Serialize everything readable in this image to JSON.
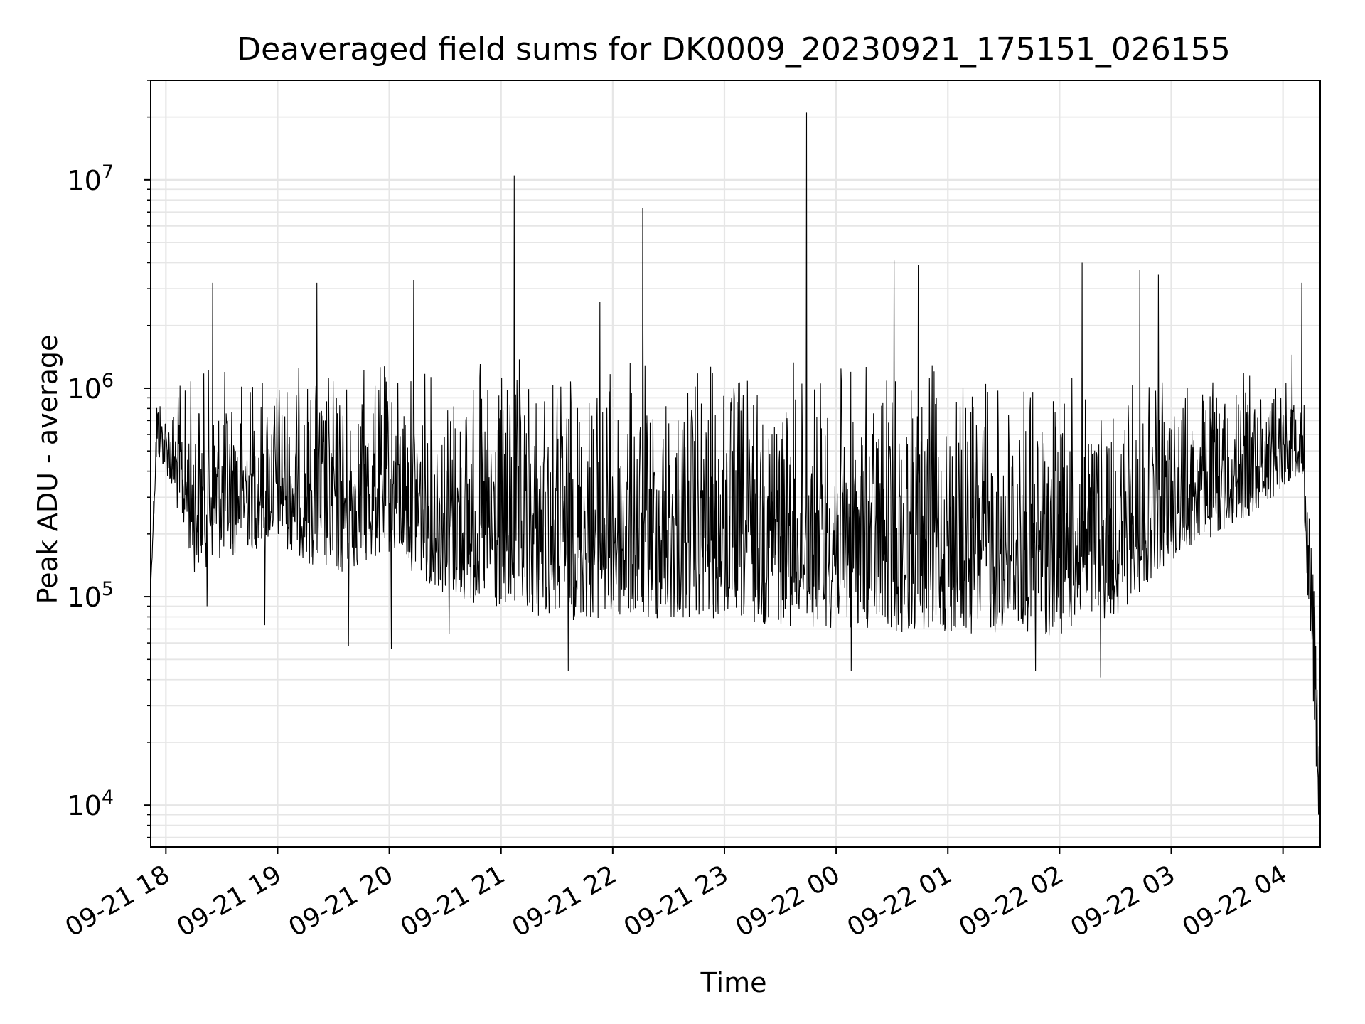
{
  "chart_data": {
    "type": "line",
    "title": "Deaveraged field sums for DK0009_20230921_175151_026155",
    "xlabel": "Time",
    "ylabel": "Peak ADU - average",
    "yscale": "log",
    "ylim": [
      6300,
      30000000
    ],
    "xlim": [
      "2023-09-21 17:51:51",
      "2023-09-22 04:20:00"
    ],
    "grid": true,
    "line_color": "#000000",
    "grid_color": "#e6e6e6",
    "x_ticks": [
      {
        "t": "2023-09-21 18:00",
        "label": "09-21 18"
      },
      {
        "t": "2023-09-21 19:00",
        "label": "09-21 19"
      },
      {
        "t": "2023-09-21 20:00",
        "label": "09-21 20"
      },
      {
        "t": "2023-09-21 21:00",
        "label": "09-21 21"
      },
      {
        "t": "2023-09-21 22:00",
        "label": "09-21 22"
      },
      {
        "t": "2023-09-21 23:00",
        "label": "09-21 23"
      },
      {
        "t": "2023-09-22 00:00",
        "label": "09-22 00"
      },
      {
        "t": "2023-09-22 01:00",
        "label": "09-22 01"
      },
      {
        "t": "2023-09-22 02:00",
        "label": "09-22 02"
      },
      {
        "t": "2023-09-22 03:00",
        "label": "09-22 03"
      },
      {
        "t": "2023-09-22 04:00",
        "label": "09-22 04"
      }
    ],
    "y_ticks": [
      {
        "value": 10000,
        "base": "10",
        "exp": "4"
      },
      {
        "value": 100000,
        "base": "10",
        "exp": "5"
      },
      {
        "value": 1000000,
        "base": "10",
        "exp": "6"
      },
      {
        "value": 10000000,
        "base": "10",
        "exp": "7"
      }
    ],
    "series": [
      {
        "envelope": [
          {
            "t": "2023-09-21 17:51:51",
            "low": 110000,
            "high": 110000
          },
          {
            "t": "2023-09-21 17:55",
            "low": 450000,
            "high": 1200000
          },
          {
            "t": "2023-09-21 18:00",
            "low": 400000,
            "high": 900000
          },
          {
            "t": "2023-09-21 18:15",
            "low": 130000,
            "high": 1400000
          },
          {
            "t": "2023-09-21 18:30",
            "low": 150000,
            "high": 1400000
          },
          {
            "t": "2023-09-21 19:00",
            "low": 180000,
            "high": 1400000
          },
          {
            "t": "2023-09-21 19:30",
            "low": 120000,
            "high": 1400000
          },
          {
            "t": "2023-09-21 20:00",
            "low": 160000,
            "high": 1450000
          },
          {
            "t": "2023-09-21 20:30",
            "low": 100000,
            "high": 1400000
          },
          {
            "t": "2023-09-21 21:00",
            "low": 80000,
            "high": 1450000
          },
          {
            "t": "2023-09-21 22:00",
            "low": 75000,
            "high": 1450000
          },
          {
            "t": "2023-09-21 23:00",
            "low": 75000,
            "high": 1450000
          },
          {
            "t": "2023-09-22 00:00",
            "low": 70000,
            "high": 1450000
          },
          {
            "t": "2023-09-22 01:00",
            "low": 65000,
            "high": 1400000
          },
          {
            "t": "2023-09-22 02:00",
            "low": 65000,
            "high": 1300000
          },
          {
            "t": "2023-09-22 02:30",
            "low": 80000,
            "high": 1000000
          },
          {
            "t": "2023-09-22 03:00",
            "low": 150000,
            "high": 1200000
          },
          {
            "t": "2023-09-22 03:45",
            "low": 250000,
            "high": 1300000
          },
          {
            "t": "2023-09-22 04:10",
            "low": 400000,
            "high": 1600000
          },
          {
            "t": "2023-09-22 04:15",
            "low": 50000,
            "high": 300000
          },
          {
            "t": "2023-09-22 04:19",
            "low": 9000,
            "high": 170000
          }
        ],
        "spikes": [
          {
            "t": "2023-09-21 18:25",
            "value": 3200000
          },
          {
            "t": "2023-09-21 19:21",
            "value": 3200000
          },
          {
            "t": "2023-09-21 20:13",
            "value": 3300000
          },
          {
            "t": "2023-09-21 21:07",
            "value": 10500000
          },
          {
            "t": "2023-09-21 21:53",
            "value": 2600000
          },
          {
            "t": "2023-09-21 22:16",
            "value": 7300000
          },
          {
            "t": "2023-09-21 23:44",
            "value": 21000000
          },
          {
            "t": "2023-09-22 00:31",
            "value": 4100000
          },
          {
            "t": "2023-09-22 00:44",
            "value": 3900000
          },
          {
            "t": "2023-09-22 02:12",
            "value": 4000000
          },
          {
            "t": "2023-09-22 02:43",
            "value": 3700000
          },
          {
            "t": "2023-09-22 02:53",
            "value": 3500000
          },
          {
            "t": "2023-09-22 04:10",
            "value": 3200000
          }
        ],
        "dips": [
          {
            "t": "2023-09-21 18:22",
            "value": 90000
          },
          {
            "t": "2023-09-21 18:53",
            "value": 73000
          },
          {
            "t": "2023-09-21 19:38",
            "value": 58000
          },
          {
            "t": "2023-09-21 20:01",
            "value": 56000
          },
          {
            "t": "2023-09-21 20:32",
            "value": 66000
          },
          {
            "t": "2023-09-21 21:36",
            "value": 44000
          },
          {
            "t": "2023-09-22 00:08",
            "value": 44000
          },
          {
            "t": "2023-09-22 01:47",
            "value": 44000
          },
          {
            "t": "2023-09-22 02:22",
            "value": 41000
          },
          {
            "t": "2023-09-22 04:19",
            "value": 9000
          }
        ]
      }
    ]
  }
}
